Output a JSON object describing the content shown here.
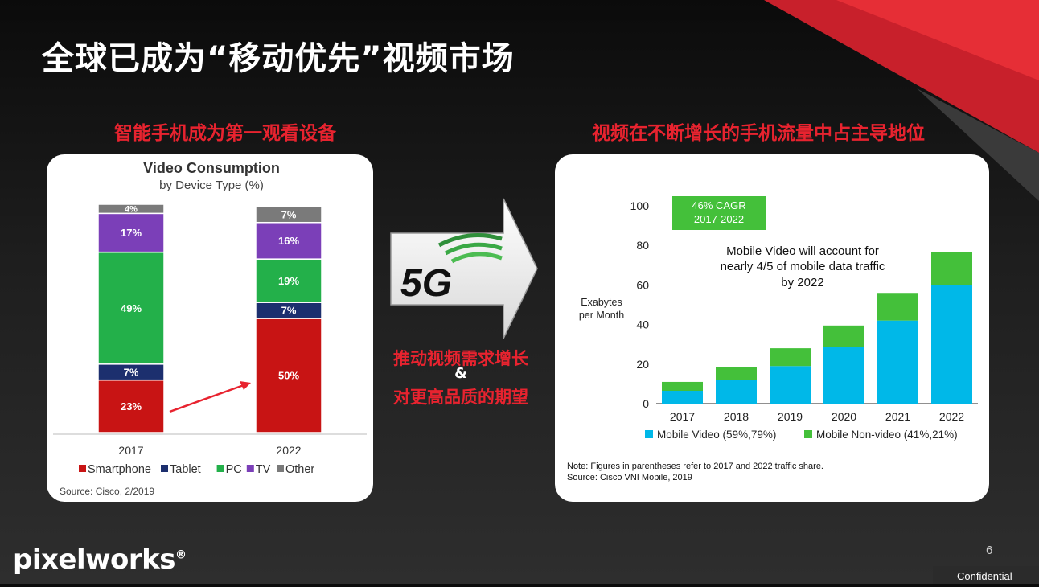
{
  "slide": {
    "title": "全球已成为“移动优先”视频市场",
    "left_heading": "智能手机成为第一观看设备",
    "right_heading": "视频在不断增长的手机流量中占主导地位",
    "center_badge": "5G",
    "center_line1": "推动视频需求增长",
    "center_line2": "&",
    "center_line3": "对更高品质的期望",
    "logo": "pixelworks",
    "logo_mark": "®",
    "page_number": "6",
    "footer": "Confidential",
    "colors": {
      "accent_red": "#e8232f",
      "background": "#1a1a1a"
    }
  },
  "chart_data": [
    {
      "type": "bar",
      "stacked": true,
      "title": "Video Consumption",
      "subtitle": "by Device Type (%)",
      "categories": [
        "2017",
        "2022"
      ],
      "series": [
        {
          "name": "Smartphone",
          "color": "#c81414",
          "values": [
            23,
            50
          ]
        },
        {
          "name": "Tablet",
          "color": "#1c2f6e",
          "values": [
            7,
            7
          ]
        },
        {
          "name": "PC",
          "color": "#23b04a",
          "values": [
            49,
            19
          ]
        },
        {
          "name": "TV",
          "color": "#7b3fb8",
          "values": [
            17,
            16
          ]
        },
        {
          "name": "Other",
          "color": "#7a7a7a",
          "values": [
            4,
            7
          ]
        }
      ],
      "data_labels": [
        [
          "23%",
          "7%",
          "49%",
          "17%",
          "4%"
        ],
        [
          "50%",
          "7%",
          "19%",
          "16%",
          "7%"
        ]
      ],
      "legend_position": "bottom",
      "source": "Source: Cisco, 2/2019"
    },
    {
      "type": "bar",
      "stacked": true,
      "categories": [
        "2017",
        "2018",
        "2019",
        "2020",
        "2021",
        "2022"
      ],
      "series": [
        {
          "name": "Mobile Video (59%,79%)",
          "color": "#00b8e8",
          "values": [
            6.5,
            11.8,
            19,
            28.5,
            42,
            60
          ]
        },
        {
          "name": "Mobile Non-video (41%,21%)",
          "color": "#44c03a",
          "values": [
            4.5,
            6.7,
            9,
            11,
            14,
            16.5
          ]
        }
      ],
      "ylabel_line1": "Exabytes",
      "ylabel_line2": "per Month",
      "ylim": [
        0,
        100
      ],
      "yticks": [
        0,
        20,
        40,
        60,
        80,
        100
      ],
      "grid": false,
      "cagr_line1": "46% CAGR",
      "cagr_line2": "2017-2022",
      "annotation_lines": [
        "Mobile Video will account for",
        "nearly 4/5 of mobile data traffic",
        "by 2022"
      ],
      "note": "Note: Figures in parentheses refer to 2017 and 2022 traffic share.",
      "source": "Source: Cisco VNI Mobile, 2019",
      "legend_position": "bottom"
    }
  ]
}
